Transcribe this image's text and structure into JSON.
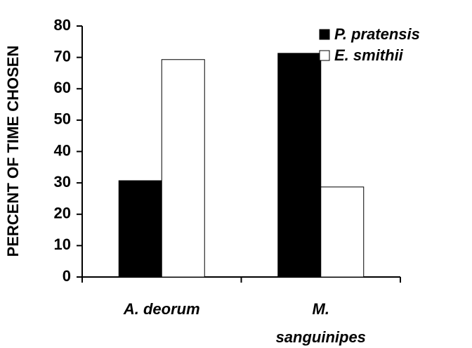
{
  "chart_data": {
    "type": "bar",
    "ylabel": "PERCENT OF TIME CHOSEN",
    "categories": [
      "A. deorum",
      "M. sanguinipes"
    ],
    "series": [
      {
        "name": "P. pratensis",
        "color": "#000000",
        "values": [
          30.7,
          71.3
        ]
      },
      {
        "name": "E. smithii",
        "color": "#ffffff",
        "values": [
          69.3,
          28.7
        ]
      }
    ],
    "ylim": [
      0,
      80
    ],
    "yticks": [
      0,
      10,
      20,
      30,
      40,
      50,
      60,
      70,
      80
    ],
    "grid": false,
    "legend": "upper right"
  }
}
